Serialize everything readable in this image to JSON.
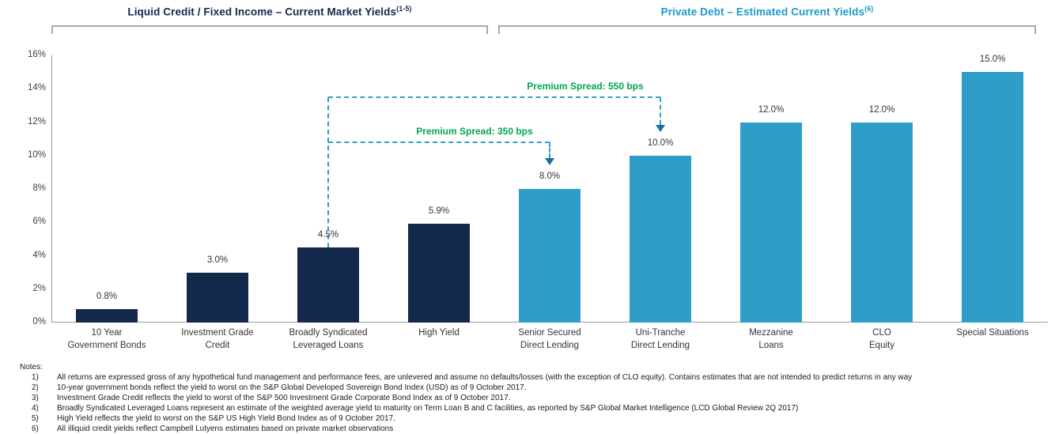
{
  "headers": {
    "left": {
      "label": "Liquid Credit / Fixed Income – Current Market Yields",
      "sup": "(1-5)",
      "color": "#13294B"
    },
    "right": {
      "label": "Private Debt – Estimated Current Yields",
      "sup": "(6)",
      "color": "#1F98CB"
    }
  },
  "chart_data": {
    "type": "bar",
    "title": "",
    "xlabel": "",
    "ylabel": "",
    "categories": [
      [
        "10 Year",
        "Government Bonds"
      ],
      [
        "Investment Grade",
        "Credit"
      ],
      [
        "Broadly Syndicated",
        "Leveraged Loans"
      ],
      [
        "High Yield"
      ],
      [
        "Senior Secured",
        "Direct Lending"
      ],
      [
        "Uni-Tranche",
        "Direct Lending"
      ],
      [
        "Mezzanine",
        "Loans"
      ],
      [
        "CLO",
        "Equity"
      ],
      [
        "Special Situations"
      ]
    ],
    "values": [
      0.8,
      3.0,
      4.5,
      5.9,
      8.0,
      10.0,
      12.0,
      12.0,
      15.0
    ],
    "value_labels": [
      "0.8%",
      "3.0%",
      "4.5%",
      "5.9%",
      "8.0%",
      "10.0%",
      "12.0%",
      "12.0%",
      "15.0%"
    ],
    "groups": [
      "liquid",
      "liquid",
      "liquid",
      "liquid",
      "private",
      "private",
      "private",
      "private",
      "private"
    ],
    "group_colors": {
      "liquid": "#13294B",
      "private": "#2E9EC9"
    },
    "ylim": [
      0,
      16
    ],
    "ytick_values": [
      0,
      2,
      4,
      6,
      8,
      10,
      12,
      14,
      16
    ],
    "ytick_labels": [
      "0%",
      "2%",
      "4%",
      "6%",
      "8%",
      "10%",
      "12%",
      "14%",
      "16%"
    ],
    "grid": false,
    "legend": "none"
  },
  "annotations": [
    {
      "label": "Premium Spread: 350 bps",
      "from_index": 2,
      "to_index": 4,
      "level": 10.8,
      "text_color": "#00A651",
      "line_color": "#2E9EC9",
      "arrow_color": "#1b6e9e"
    },
    {
      "label": "Premium Spread: 550 bps",
      "from_index": 2,
      "to_index": 5,
      "level": 13.5,
      "text_color": "#00A651",
      "line_color": "#2E9EC9",
      "arrow_color": "#1b6e9e"
    }
  ],
  "notes": {
    "title": "Notes:",
    "items": [
      {
        "num": "1)",
        "text": "All returns are expressed gross of any hypothetical fund management and performance fees, are unlevered and assume no defaults/losses (with the exception of CLO equity). Contains estimates that are not intended to predict returns in any way"
      },
      {
        "num": "2)",
        "text": "10-year government bonds reflect the yield to worst on the S&P Global Developed Sovereign Bond Index (USD) as of 9 October 2017."
      },
      {
        "num": "3)",
        "text": "Investment Grade Credit reflects the yield to worst of the S&P 500 Investment Grade Corporate Bond Index as of 9 October 2017."
      },
      {
        "num": "4)",
        "text": "Broadly Syndicated Leveraged Loans represent an estimate of the weighted average yield to maturity on Term Loan B and C facilities, as reported by S&P Global Market Intelligence (LCD Global Review 2Q 2017)"
      },
      {
        "num": "5)",
        "text": "High Yield reflects the yield to worst on the S&P US High Yield Bond Index as of 9 October 2017."
      },
      {
        "num": "6)",
        "text": "All illiquid credit yields reflect Campbell Lutyens estimates based on private market observations"
      }
    ]
  }
}
